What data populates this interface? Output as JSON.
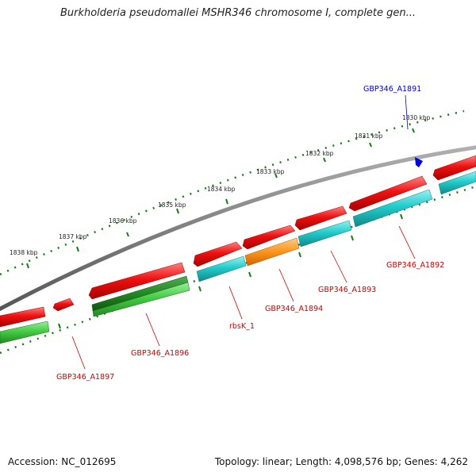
{
  "title": "Burkholderia pseudomallei MSHR346 chromosome I, complete gen...",
  "footer": {
    "accession": "Accession: NC_012695",
    "summary": "Topology: linear; Length: 4,098,576 bp; Genes: 4,262"
  },
  "ticks": [
    "1830 kbp",
    "1831 kbp",
    "1832 kbp",
    "1833 kbp",
    "1834 kbp",
    "1835 kbp",
    "1836 kbp",
    "1837 kbp",
    "1838 kbp"
  ],
  "gene_labels": [
    {
      "text": "GBP346_A1891",
      "color": "#0000cc"
    },
    {
      "text": "GBP346_A1892",
      "color": "#cc0000"
    },
    {
      "text": "GBP346_A1893",
      "color": "#cc0000"
    },
    {
      "text": "GBP346_A1894",
      "color": "#cc0000"
    },
    {
      "text": "rbsK_1",
      "color": "#cc0000"
    },
    {
      "text": "GBP346_A1896",
      "color": "#cc0000"
    },
    {
      "text": "GBP346_A1897",
      "color": "#cc0000"
    }
  ],
  "colors": {
    "backbone": "#808080",
    "gene_red": "#ee1111",
    "cds_cyan": "#22cccc",
    "cds_orange": "#ff9922",
    "cds_green": "#44cc44",
    "cds_dark_green": "#228822",
    "tick_green": "#1a7a1a",
    "marker_blue": "#0000dd"
  }
}
